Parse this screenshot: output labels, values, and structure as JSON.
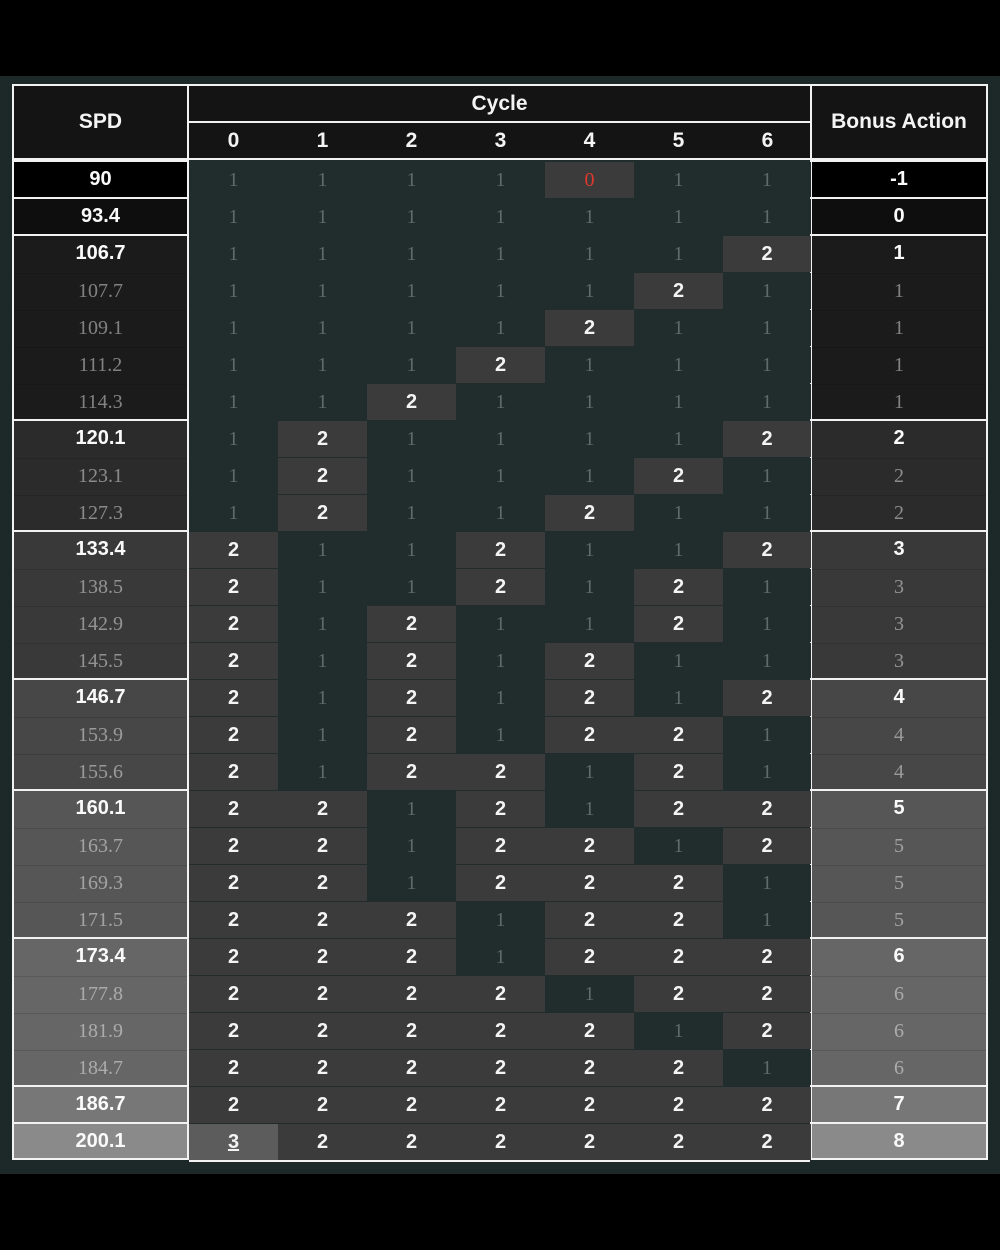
{
  "headers": {
    "spd": "SPD",
    "cycle": "Cycle",
    "bonus": "Bonus Action",
    "cycles": [
      "0",
      "1",
      "2",
      "3",
      "4",
      "5",
      "6"
    ]
  },
  "colors": {
    "background": "#1d2828",
    "cell_one": "#212d2d",
    "cell_two": "#3b3b3b",
    "cell_three": "#5c5c5c",
    "zero_text": "#e0382c",
    "group_shades": [
      "#000000",
      "#0e0e0e",
      "#1b1b1b",
      "#2b2b2b",
      "#393939",
      "#474747",
      "#565656",
      "#666666",
      "#777777",
      "#8a8a8a"
    ]
  },
  "groups": [
    {
      "bonus": "-1",
      "rows": [
        {
          "spd": "90",
          "cycles": [
            "1",
            "1",
            "1",
            "1",
            "0",
            "1",
            "1"
          ]
        }
      ]
    },
    {
      "bonus": "0",
      "rows": [
        {
          "spd": "93.4",
          "cycles": [
            "1",
            "1",
            "1",
            "1",
            "1",
            "1",
            "1"
          ]
        }
      ]
    },
    {
      "bonus": "1",
      "rows": [
        {
          "spd": "106.7",
          "cycles": [
            "1",
            "1",
            "1",
            "1",
            "1",
            "1",
            "2"
          ]
        },
        {
          "spd": "107.7",
          "cycles": [
            "1",
            "1",
            "1",
            "1",
            "1",
            "2",
            "1"
          ]
        },
        {
          "spd": "109.1",
          "cycles": [
            "1",
            "1",
            "1",
            "1",
            "2",
            "1",
            "1"
          ]
        },
        {
          "spd": "111.2",
          "cycles": [
            "1",
            "1",
            "1",
            "2",
            "1",
            "1",
            "1"
          ]
        },
        {
          "spd": "114.3",
          "cycles": [
            "1",
            "1",
            "2",
            "1",
            "1",
            "1",
            "1"
          ]
        }
      ]
    },
    {
      "bonus": "2",
      "rows": [
        {
          "spd": "120.1",
          "cycles": [
            "1",
            "2",
            "1",
            "1",
            "1",
            "1",
            "2"
          ]
        },
        {
          "spd": "123.1",
          "cycles": [
            "1",
            "2",
            "1",
            "1",
            "1",
            "2",
            "1"
          ]
        },
        {
          "spd": "127.3",
          "cycles": [
            "1",
            "2",
            "1",
            "1",
            "2",
            "1",
            "1"
          ]
        }
      ]
    },
    {
      "bonus": "3",
      "rows": [
        {
          "spd": "133.4",
          "cycles": [
            "2",
            "1",
            "1",
            "2",
            "1",
            "1",
            "2"
          ]
        },
        {
          "spd": "138.5",
          "cycles": [
            "2",
            "1",
            "1",
            "2",
            "1",
            "2",
            "1"
          ]
        },
        {
          "spd": "142.9",
          "cycles": [
            "2",
            "1",
            "2",
            "1",
            "1",
            "2",
            "1"
          ]
        },
        {
          "spd": "145.5",
          "cycles": [
            "2",
            "1",
            "2",
            "1",
            "2",
            "1",
            "1"
          ]
        }
      ]
    },
    {
      "bonus": "4",
      "rows": [
        {
          "spd": "146.7",
          "cycles": [
            "2",
            "1",
            "2",
            "1",
            "2",
            "1",
            "2"
          ]
        },
        {
          "spd": "153.9",
          "cycles": [
            "2",
            "1",
            "2",
            "1",
            "2",
            "2",
            "1"
          ]
        },
        {
          "spd": "155.6",
          "cycles": [
            "2",
            "1",
            "2",
            "2",
            "1",
            "2",
            "1"
          ]
        }
      ]
    },
    {
      "bonus": "5",
      "rows": [
        {
          "spd": "160.1",
          "cycles": [
            "2",
            "2",
            "1",
            "2",
            "1",
            "2",
            "2"
          ]
        },
        {
          "spd": "163.7",
          "cycles": [
            "2",
            "2",
            "1",
            "2",
            "2",
            "1",
            "2"
          ]
        },
        {
          "spd": "169.3",
          "cycles": [
            "2",
            "2",
            "1",
            "2",
            "2",
            "2",
            "1"
          ]
        },
        {
          "spd": "171.5",
          "cycles": [
            "2",
            "2",
            "2",
            "1",
            "2",
            "2",
            "1"
          ]
        }
      ]
    },
    {
      "bonus": "6",
      "rows": [
        {
          "spd": "173.4",
          "cycles": [
            "2",
            "2",
            "2",
            "1",
            "2",
            "2",
            "2"
          ]
        },
        {
          "spd": "177.8",
          "cycles": [
            "2",
            "2",
            "2",
            "2",
            "1",
            "2",
            "2"
          ]
        },
        {
          "spd": "181.9",
          "cycles": [
            "2",
            "2",
            "2",
            "2",
            "2",
            "1",
            "2"
          ]
        },
        {
          "spd": "184.7",
          "cycles": [
            "2",
            "2",
            "2",
            "2",
            "2",
            "2",
            "1"
          ]
        }
      ]
    },
    {
      "bonus": "7",
      "rows": [
        {
          "spd": "186.7",
          "cycles": [
            "2",
            "2",
            "2",
            "2",
            "2",
            "2",
            "2"
          ]
        }
      ]
    },
    {
      "bonus": "8",
      "rows": [
        {
          "spd": "200.1",
          "cycles": [
            "3",
            "2",
            "2",
            "2",
            "2",
            "2",
            "2"
          ]
        }
      ]
    }
  ]
}
